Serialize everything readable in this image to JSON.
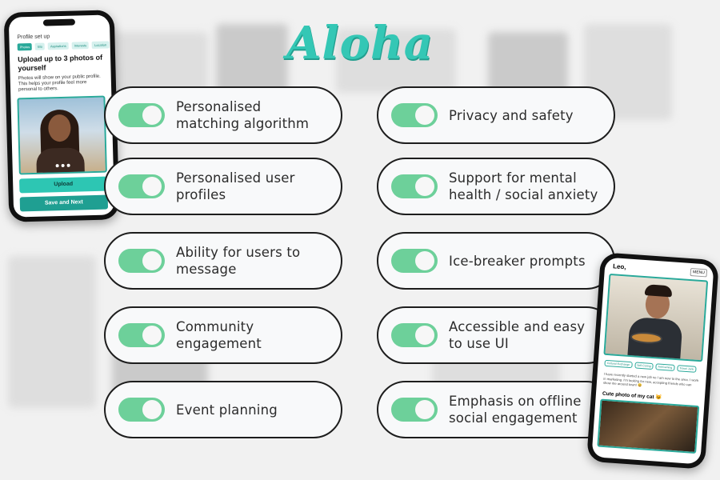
{
  "logo": "Aloha",
  "features_left": [
    "Personalised\nmatching algorithm",
    "Personalised user\nprofiles",
    "Ability for users to\nmessage",
    "Community\nengagement",
    "Event planning"
  ],
  "features_right": [
    "Privacy and safety",
    "Support for mental\nhealth / social anxiety",
    "Ice-breaker prompts",
    "Accessible and easy\nto use UI",
    "Emphasis on offline\nsocial engagement"
  ],
  "toggle_color": "#6dd09a",
  "accent_color": "#2dc6b3",
  "phone_left": {
    "header": "Profile set up",
    "tabs": [
      "Photos",
      "Bio",
      "Aspirations",
      "Interests",
      "Location"
    ],
    "title": "Upload up to 3 photos of yourself",
    "subtitle": "Photos will show on your public profile. This helps your profile feel more personal to others.",
    "upload_label": "Upload",
    "save_label": "Save and Next"
  },
  "phone_right": {
    "name": "Leo,",
    "menu": "MENU",
    "chips": [
      "Cultural Exchange",
      "Self-Caring",
      "Art/Gaming",
      "Travel Junk"
    ],
    "bio": "I have recently started a new job so I am new to the area. I work in marketing. I'm looking for new, accepting friends who can show me around town! 😀",
    "cat_title": "Cute photo of my cat 😺"
  }
}
